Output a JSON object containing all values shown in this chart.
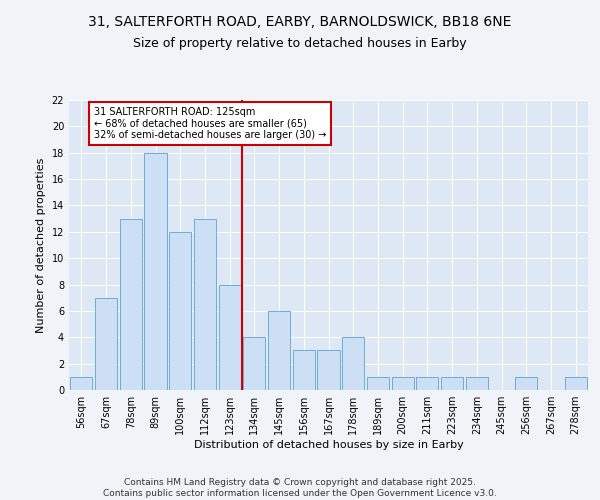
{
  "title_line1": "31, SALTERFORTH ROAD, EARBY, BARNOLDSWICK, BB18 6NE",
  "title_line2": "Size of property relative to detached houses in Earby",
  "xlabel": "Distribution of detached houses by size in Earby",
  "ylabel": "Number of detached properties",
  "categories": [
    "56sqm",
    "67sqm",
    "78sqm",
    "89sqm",
    "100sqm",
    "112sqm",
    "123sqm",
    "134sqm",
    "145sqm",
    "156sqm",
    "167sqm",
    "178sqm",
    "189sqm",
    "200sqm",
    "211sqm",
    "223sqm",
    "234sqm",
    "245sqm",
    "256sqm",
    "267sqm",
    "278sqm"
  ],
  "values": [
    1,
    7,
    13,
    18,
    12,
    13,
    8,
    4,
    6,
    3,
    3,
    4,
    1,
    1,
    1,
    1,
    1,
    0,
    1,
    0,
    1
  ],
  "bar_color": "#ccdff5",
  "bar_edge_color": "#6aaed6",
  "highlight_bar_index": 6,
  "highlight_line_color": "#cc0000",
  "ylim": [
    0,
    22
  ],
  "yticks": [
    0,
    2,
    4,
    6,
    8,
    10,
    12,
    14,
    16,
    18,
    20,
    22
  ],
  "annotation_text": "31 SALTERFORTH ROAD: 125sqm\n← 68% of detached houses are smaller (65)\n32% of semi-detached houses are larger (30) →",
  "annotation_box_color": "#ffffff",
  "annotation_box_edge": "#cc0000",
  "footer_text": "Contains HM Land Registry data © Crown copyright and database right 2025.\nContains public sector information licensed under the Open Government Licence v3.0.",
  "fig_bg": "#f0f4f8",
  "axes_bg": "#dde8f4",
  "grid_color": "#ffffff",
  "title_fontsize": 10,
  "subtitle_fontsize": 9,
  "axis_label_fontsize": 8,
  "tick_fontsize": 7,
  "footer_fontsize": 6.5
}
